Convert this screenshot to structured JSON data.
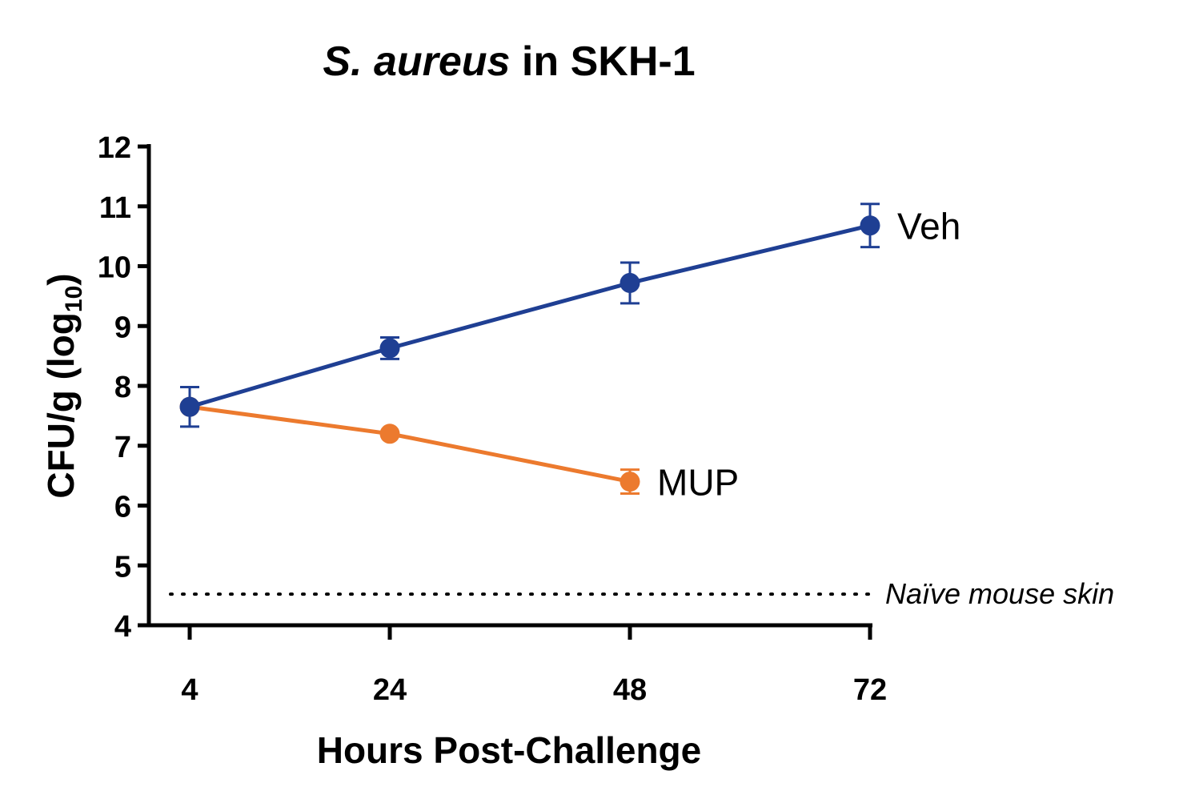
{
  "chart_data": {
    "type": "line",
    "title": {
      "italic_part": "S. aureus",
      "rest": " in SKH-1"
    },
    "xlabel": "Hours Post-Challenge",
    "ylabel": {
      "main": "CFU/g (log",
      "subscript": "10",
      "close": ")"
    },
    "x_categories": [
      "4",
      "24",
      "48",
      "72"
    ],
    "ylim": [
      4,
      12
    ],
    "yticks": [
      4,
      5,
      6,
      7,
      8,
      9,
      10,
      11,
      12
    ],
    "series": [
      {
        "name": "Veh",
        "color": "#1f3f93",
        "x": [
          "4",
          "24",
          "48",
          "72"
        ],
        "y": [
          7.65,
          8.63,
          9.72,
          10.68
        ],
        "error": [
          0.33,
          0.18,
          0.34,
          0.36
        ]
      },
      {
        "name": "MUP",
        "color": "#ec7a2e",
        "x": [
          "4",
          "24",
          "48"
        ],
        "y": [
          7.65,
          7.2,
          6.4
        ],
        "error": [
          0.0,
          0.0,
          0.2
        ]
      }
    ],
    "reference_line": {
      "label": "Naïve mouse skin",
      "y": 4.52,
      "style": "dotted"
    },
    "grid": false
  }
}
